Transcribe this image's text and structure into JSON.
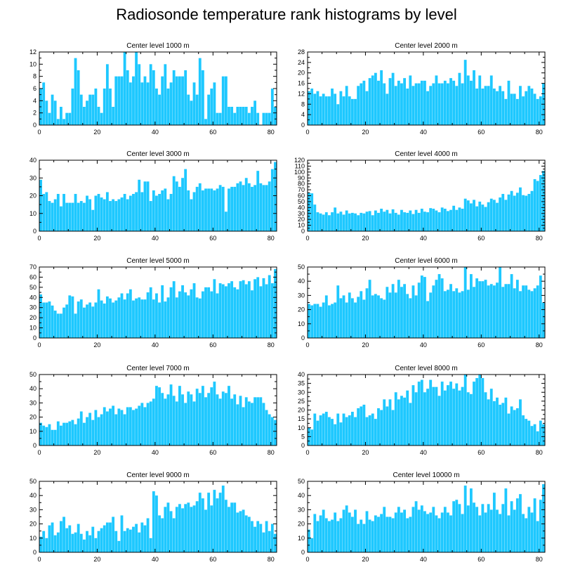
{
  "title": "Radiosonde temperature rank histograms by level",
  "bar_color": "#1ec8ff",
  "chart_data": [
    {
      "type": "bar",
      "title": "Center level 1000 m",
      "ylim": [
        0,
        12
      ],
      "yticks": [
        0,
        2,
        4,
        6,
        8,
        10,
        12
      ],
      "xticks": [
        0,
        20,
        40,
        60,
        80
      ],
      "values": [
        6,
        7,
        4,
        2,
        5,
        4,
        1,
        3,
        1,
        2,
        2,
        6,
        11,
        9,
        5,
        3,
        4,
        5,
        5,
        6,
        3,
        2,
        6,
        10,
        6,
        3,
        8,
        8,
        8,
        12,
        9,
        7,
        8,
        12,
        10,
        7,
        8,
        7,
        10,
        9,
        6,
        5,
        8,
        10,
        6,
        7,
        9,
        8,
        8,
        8,
        9,
        5,
        4,
        7,
        5,
        11,
        9,
        1,
        5,
        6,
        7,
        2,
        2,
        8,
        8,
        3,
        3,
        2,
        3,
        3,
        3,
        3,
        2,
        3,
        4,
        2,
        0,
        2,
        2,
        2,
        6,
        3
      ]
    },
    {
      "type": "bar",
      "title": "Center level 2000 m",
      "ylim": [
        0,
        28
      ],
      "yticks": [
        0,
        4,
        8,
        12,
        16,
        20,
        24,
        28
      ],
      "xticks": [
        0,
        20,
        40,
        60,
        80
      ],
      "values": [
        13,
        14,
        12,
        13,
        11,
        12,
        11,
        11,
        14,
        12,
        8,
        13,
        11,
        15,
        11,
        10,
        10,
        15,
        16,
        17,
        13,
        18,
        19,
        20,
        17,
        21,
        16,
        12,
        18,
        20,
        15,
        17,
        16,
        18,
        14,
        19,
        15,
        16,
        16,
        17,
        17,
        13,
        15,
        16,
        19,
        16,
        16,
        17,
        16,
        18,
        17,
        15,
        20,
        16,
        25,
        19,
        17,
        21,
        14,
        19,
        14,
        15,
        15,
        19,
        14,
        13,
        15,
        13,
        10,
        17,
        12,
        12,
        10,
        15,
        11,
        13,
        15,
        14,
        12,
        10,
        11,
        16
      ]
    },
    {
      "type": "bar",
      "title": "Center level 3000 m",
      "ylim": [
        0,
        40
      ],
      "yticks": [
        0,
        10,
        20,
        30,
        40
      ],
      "xticks": [
        0,
        20,
        40,
        60,
        80
      ],
      "values": [
        29,
        21,
        22,
        17,
        16,
        18,
        21,
        14,
        21,
        16,
        16,
        16,
        21,
        16,
        17,
        16,
        20,
        18,
        12,
        20,
        21,
        19,
        18,
        22,
        17,
        18,
        17,
        18,
        19,
        21,
        18,
        20,
        21,
        22,
        29,
        22,
        28,
        28,
        17,
        23,
        20,
        21,
        23,
        24,
        18,
        21,
        31,
        28,
        25,
        30,
        35,
        23,
        18,
        22,
        25,
        27,
        23,
        24,
        24,
        24,
        23,
        24,
        26,
        25,
        11,
        24,
        25,
        25,
        27,
        28,
        26,
        30,
        27,
        25,
        26,
        34,
        27,
        26,
        26,
        28,
        35,
        39
      ]
    },
    {
      "type": "bar",
      "title": "Center level 4000 m",
      "ylim": [
        0,
        120
      ],
      "yticks": [
        0,
        10,
        20,
        30,
        40,
        50,
        60,
        70,
        80,
        90,
        100,
        110,
        120
      ],
      "xticks": [
        0,
        20,
        40,
        60,
        80
      ],
      "values": [
        65,
        64,
        45,
        32,
        30,
        28,
        32,
        27,
        32,
        40,
        30,
        33,
        28,
        35,
        30,
        31,
        30,
        27,
        31,
        30,
        33,
        34,
        27,
        35,
        31,
        38,
        33,
        36,
        30,
        37,
        31,
        28,
        36,
        32,
        31,
        35,
        29,
        36,
        31,
        38,
        33,
        32,
        39,
        38,
        35,
        32,
        40,
        38,
        34,
        36,
        43,
        36,
        40,
        38,
        55,
        52,
        47,
        53,
        42,
        50,
        45,
        41,
        49,
        55,
        53,
        48,
        57,
        63,
        53,
        62,
        68,
        60,
        65,
        74,
        61,
        60,
        63,
        68,
        88,
        85,
        95,
        102
      ]
    },
    {
      "type": "bar",
      "title": "Center level 5000 m",
      "ylim": [
        0,
        70
      ],
      "yticks": [
        0,
        10,
        20,
        30,
        40,
        50,
        60,
        70
      ],
      "xticks": [
        0,
        20,
        40,
        60,
        80
      ],
      "values": [
        43,
        35,
        35,
        36,
        32,
        27,
        24,
        24,
        30,
        33,
        42,
        41,
        24,
        36,
        38,
        30,
        33,
        35,
        31,
        35,
        48,
        37,
        34,
        41,
        39,
        35,
        37,
        40,
        44,
        38,
        44,
        48,
        37,
        39,
        40,
        38,
        38,
        45,
        50,
        38,
        44,
        35,
        52,
        36,
        40,
        50,
        56,
        40,
        46,
        52,
        45,
        42,
        48,
        54,
        40,
        39,
        46,
        50,
        50,
        46,
        58,
        44,
        54,
        53,
        51,
        54,
        56,
        50,
        48,
        56,
        57,
        53,
        56,
        47,
        58,
        60,
        51,
        59,
        53,
        62,
        54,
        68
      ]
    },
    {
      "type": "bar",
      "title": "Center level 6000 m",
      "ylim": [
        0,
        50
      ],
      "yticks": [
        0,
        10,
        20,
        30,
        40,
        50
      ],
      "xticks": [
        0,
        20,
        40,
        60,
        80
      ],
      "values": [
        24,
        23,
        24,
        24,
        22,
        25,
        30,
        23,
        24,
        25,
        37,
        28,
        30,
        25,
        32,
        28,
        25,
        29,
        33,
        27,
        35,
        41,
        30,
        31,
        30,
        28,
        27,
        36,
        32,
        38,
        32,
        41,
        36,
        38,
        31,
        28,
        37,
        30,
        39,
        44,
        43,
        26,
        32,
        37,
        41,
        45,
        42,
        33,
        34,
        38,
        33,
        35,
        32,
        33,
        50,
        34,
        45,
        36,
        42,
        40,
        40,
        41,
        37,
        38,
        37,
        39,
        50,
        36,
        38,
        38,
        45,
        35,
        41,
        33,
        37,
        37,
        34,
        33,
        35,
        37,
        44,
        25
      ]
    },
    {
      "type": "bar",
      "title": "Center level 7000 m",
      "ylim": [
        0,
        50
      ],
      "yticks": [
        0,
        10,
        20,
        30,
        40,
        50
      ],
      "xticks": [
        0,
        20,
        40,
        60,
        80
      ],
      "values": [
        16,
        14,
        13,
        15,
        11,
        11,
        17,
        14,
        16,
        16,
        17,
        18,
        15,
        19,
        24,
        16,
        20,
        23,
        18,
        25,
        20,
        22,
        27,
        24,
        26,
        28,
        22,
        26,
        25,
        22,
        27,
        27,
        25,
        26,
        28,
        30,
        27,
        30,
        31,
        33,
        42,
        41,
        37,
        33,
        36,
        43,
        35,
        31,
        42,
        36,
        30,
        38,
        36,
        31,
        40,
        37,
        42,
        34,
        37,
        41,
        45,
        36,
        33,
        38,
        37,
        42,
        33,
        36,
        29,
        35,
        27,
        34,
        31,
        30,
        34,
        34,
        34,
        30,
        25,
        22,
        20,
        18
      ]
    },
    {
      "type": "bar",
      "title": "Center level 8000 m",
      "ylim": [
        0,
        40
      ],
      "yticks": [
        0,
        5,
        10,
        15,
        20,
        25,
        30,
        35,
        40
      ],
      "xticks": [
        0,
        20,
        40,
        60,
        80
      ],
      "values": [
        10,
        9,
        18,
        14,
        17,
        18,
        19,
        16,
        15,
        12,
        18,
        13,
        18,
        16,
        17,
        19,
        16,
        21,
        22,
        23,
        16,
        17,
        18,
        15,
        21,
        20,
        26,
        22,
        26,
        20,
        30,
        26,
        28,
        27,
        31,
        24,
        34,
        30,
        36,
        37,
        30,
        32,
        37,
        33,
        33,
        28,
        36,
        31,
        34,
        36,
        32,
        35,
        31,
        33,
        40,
        30,
        29,
        36,
        38,
        40,
        38,
        30,
        26,
        32,
        25,
        27,
        23,
        24,
        27,
        18,
        22,
        20,
        21,
        26,
        17,
        15,
        14,
        11,
        12,
        8,
        14,
        12
      ]
    },
    {
      "type": "bar",
      "title": "Center level 9000 m",
      "ylim": [
        0,
        50
      ],
      "yticks": [
        0,
        10,
        20,
        30,
        40,
        50
      ],
      "xticks": [
        0,
        20,
        40,
        60,
        80
      ],
      "values": [
        11,
        15,
        10,
        19,
        21,
        12,
        14,
        22,
        25,
        17,
        19,
        13,
        14,
        20,
        13,
        9,
        15,
        12,
        18,
        10,
        15,
        17,
        19,
        21,
        21,
        25,
        15,
        8,
        26,
        15,
        17,
        16,
        18,
        20,
        14,
        21,
        19,
        24,
        10,
        43,
        40,
        26,
        24,
        32,
        35,
        29,
        24,
        32,
        34,
        31,
        34,
        35,
        32,
        33,
        36,
        42,
        38,
        30,
        42,
        33,
        44,
        38,
        42,
        47,
        37,
        32,
        35,
        35,
        28,
        29,
        30,
        26,
        25,
        22,
        18,
        22,
        20,
        14,
        22,
        15,
        20,
        13
      ]
    },
    {
      "type": "bar",
      "title": "Center level 10000 m",
      "ylim": [
        0,
        50
      ],
      "yticks": [
        0,
        10,
        20,
        30,
        40,
        50
      ],
      "xticks": [
        0,
        20,
        40,
        60,
        80
      ],
      "values": [
        16,
        10,
        27,
        22,
        26,
        30,
        24,
        22,
        23,
        28,
        22,
        24,
        30,
        33,
        28,
        25,
        30,
        20,
        23,
        20,
        29,
        23,
        22,
        26,
        25,
        27,
        32,
        25,
        25,
        24,
        28,
        32,
        28,
        30,
        24,
        25,
        32,
        36,
        30,
        33,
        29,
        27,
        28,
        32,
        26,
        24,
        28,
        32,
        28,
        26,
        36,
        37,
        34,
        27,
        47,
        33,
        45,
        35,
        32,
        26,
        34,
        28,
        34,
        30,
        42,
        30,
        27,
        34,
        45,
        26,
        36,
        30,
        38,
        41,
        27,
        24,
        32,
        28,
        38,
        22,
        37,
        48
      ]
    }
  ]
}
